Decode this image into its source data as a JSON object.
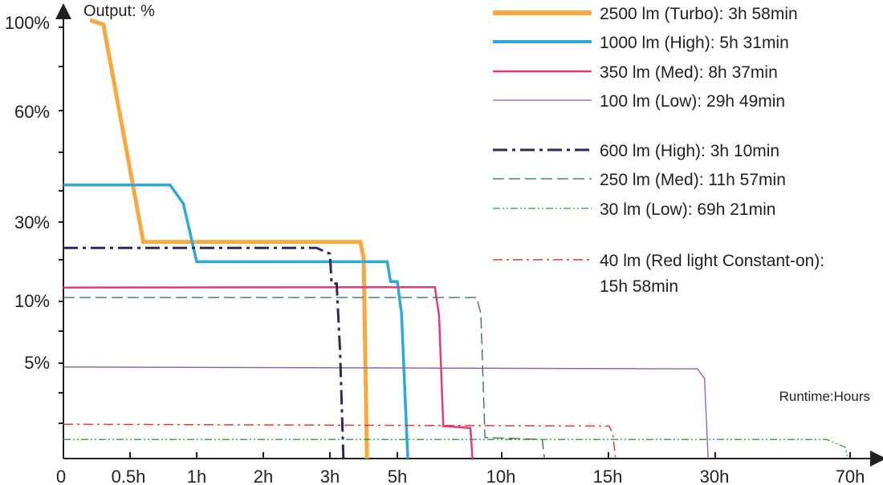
{
  "chart_data": {
    "type": "line",
    "ylabel": "Output: %",
    "xlabel": "Runtime:Hours",
    "x_ticks": [
      "0",
      "0.5h",
      "1h",
      "2h",
      "3h",
      "5h",
      "10h",
      "15h",
      "30h",
      "70h"
    ],
    "y_ticks": [
      "100%",
      "60%",
      "30%",
      "10%",
      "5%"
    ],
    "series": [
      {
        "name": "2500 lm (Turbo): 3h 58min",
        "color": "#f7a940",
        "dash": "solid",
        "points": [
          [
            0.2,
            100
          ],
          [
            0.3,
            98
          ],
          [
            0.6,
            25
          ],
          [
            3.9,
            25
          ],
          [
            4.0,
            21
          ],
          [
            4.1,
            0
          ]
        ]
      },
      {
        "name": "1000 lm (High): 5h 31min",
        "color": "#2aa8e0",
        "dash": "solid",
        "points": [
          [
            0.0,
            40
          ],
          [
            0.8,
            40
          ],
          [
            0.9,
            35
          ],
          [
            1.0,
            20
          ],
          [
            4.7,
            20
          ],
          [
            4.8,
            15
          ],
          [
            5.0,
            15
          ],
          [
            5.2,
            9
          ],
          [
            5.5,
            0
          ]
        ]
      },
      {
        "name": "350 lm (Med): 8h 37min",
        "color": "#e33a7e",
        "dash": "solid",
        "points": [
          [
            0.0,
            13.5
          ],
          [
            6.8,
            13.6
          ],
          [
            7.0,
            8.8
          ],
          [
            7.2,
            1.7
          ],
          [
            8.5,
            1.6
          ],
          [
            8.6,
            0
          ]
        ]
      },
      {
        "name": "100 lm (Low): 29h 49min",
        "color": "#8b5aa8",
        "dash": "solid",
        "points": [
          [
            0.0,
            4.8
          ],
          [
            27.5,
            4.7
          ],
          [
            28.5,
            4.2
          ],
          [
            29.0,
            0
          ]
        ]
      },
      {
        "name": "600 lm (High): 3h 10min",
        "color": "#2b2a5c",
        "dash": "dashdot-bold",
        "points": [
          [
            0.0,
            23.5
          ],
          [
            2.8,
            23.5
          ],
          [
            3.0,
            22
          ],
          [
            3.05,
            14.5
          ],
          [
            3.2,
            14.5
          ],
          [
            3.3,
            6
          ],
          [
            3.4,
            0
          ]
        ]
      },
      {
        "name": "250 lm (Med): 11h 57min",
        "color": "#2d6b44",
        "dash": "dash",
        "points": [
          [
            0.0,
            11
          ],
          [
            8.8,
            11
          ],
          [
            9.0,
            9
          ],
          [
            9.2,
            1.1
          ],
          [
            11.9,
            1.0
          ],
          [
            12.0,
            0
          ]
        ]
      },
      {
        "name": "30 lm (Low): 69h 21min",
        "color": "#23a040",
        "dash": "dashdotdot",
        "points": [
          [
            0.0,
            1.0
          ],
          [
            63,
            1.0
          ],
          [
            68.5,
            0.6
          ],
          [
            69.3,
            0
          ]
        ]
      },
      {
        "name": "40 lm (Red light Constant-on): 15h 58min",
        "color": "#e43b2c",
        "dash": "dashdot-red",
        "points": [
          [
            0.0,
            1.8
          ],
          [
            15.1,
            1.7
          ],
          [
            15.6,
            1.3
          ],
          [
            16.0,
            0
          ]
        ]
      }
    ],
    "legend_position": "top-right"
  }
}
